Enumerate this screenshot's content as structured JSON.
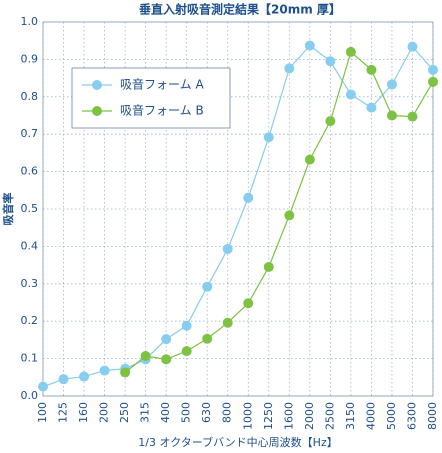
{
  "chart_data": {
    "type": "line",
    "title": "垂直入射吸音測定結果【20mm 厚】",
    "x_label": "1/3 オクターブバンド中心周波数【Hz】",
    "y_label": "吸音率",
    "categories": [
      "100",
      "125",
      "160",
      "200",
      "250",
      "315",
      "400",
      "500",
      "630",
      "800",
      "1000",
      "1250",
      "1600",
      "2000",
      "2500",
      "3150",
      "4000",
      "5000",
      "6300",
      "8000"
    ],
    "series": [
      {
        "name": "吸音フォーム A",
        "color": "#86cdf0",
        "values": [
          0.025,
          0.045,
          0.052,
          0.068,
          0.073,
          0.098,
          0.152,
          0.188,
          0.292,
          0.393,
          0.53,
          0.692,
          0.876,
          0.937,
          0.895,
          0.806,
          0.771,
          0.833,
          0.934,
          0.872
        ]
      },
      {
        "name": "吸音フォーム B",
        "color": "#7dc242",
        "values": [
          null,
          null,
          null,
          null,
          0.063,
          0.107,
          0.098,
          0.12,
          0.153,
          0.196,
          0.248,
          0.345,
          0.483,
          0.632,
          0.735,
          0.92,
          0.872,
          0.75,
          0.747,
          0.84
        ]
      }
    ],
    "ylim": [
      0,
      1
    ],
    "yticks": [
      {
        "value": 0,
        "label": "0.0"
      },
      0.1,
      0.2,
      0.3,
      0.4,
      0.5,
      0.6,
      0.7,
      0.8,
      0.9,
      {
        "value": 1,
        "label": "1.0"
      }
    ],
    "grid": true,
    "legend": "upper left"
  }
}
